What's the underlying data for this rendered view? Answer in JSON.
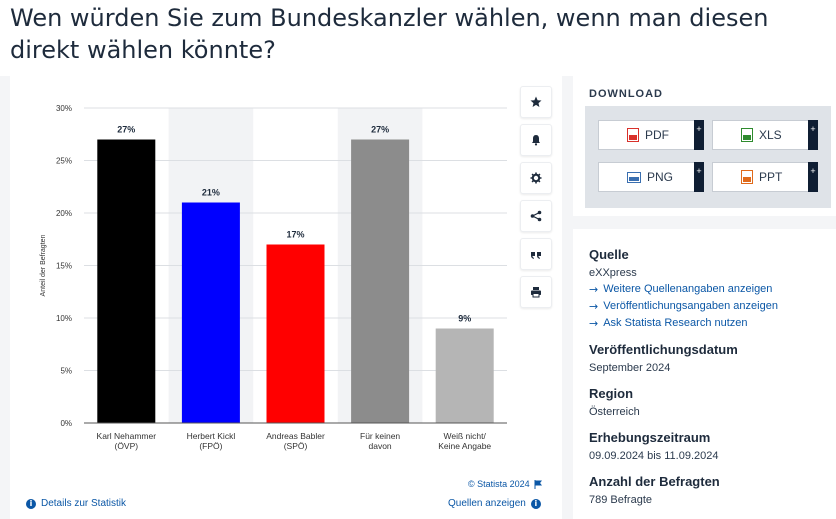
{
  "page": {
    "title": "Wen würden Sie zum Bundeskanzler wählen, wenn man diesen direkt wählen könnte?"
  },
  "chart_data": {
    "type": "bar",
    "categories": [
      [
        "Karl Nehammer",
        "(ÖVP)"
      ],
      [
        "Herbert Kickl",
        "(FPÖ)"
      ],
      [
        "Andreas Babler",
        "(SPÖ)"
      ],
      [
        "Für keinen",
        "davon"
      ],
      [
        "Weiß nicht/",
        "Keine Angabe"
      ]
    ],
    "values": [
      27,
      21,
      17,
      27,
      9
    ],
    "value_labels": [
      "27%",
      "21%",
      "17%",
      "27%",
      "9%"
    ],
    "colors": [
      "#000000",
      "#0000ff",
      "#ff0000",
      "#8c8c8c",
      "#b5b5b5"
    ],
    "ylabel": "Anteil der Befragten",
    "ylim": [
      0,
      30
    ],
    "yticks": [
      0,
      5,
      10,
      15,
      20,
      25,
      30
    ],
    "ytick_labels": [
      "0%",
      "5%",
      "10%",
      "15%",
      "20%",
      "25%",
      "30%"
    ],
    "grid": true,
    "highlight_columns": [
      1,
      3
    ]
  },
  "chart_footer": {
    "copyright": "© Statista 2024",
    "details_label": "Details zur Statistik",
    "sources_label": "Quellen anzeigen"
  },
  "tools": [
    "star-icon",
    "bell-icon",
    "gear-icon",
    "share-icon",
    "quote-icon",
    "print-icon"
  ],
  "download": {
    "title": "DOWNLOAD",
    "buttons": [
      {
        "label": "PDF",
        "icon": "pdf-file-icon",
        "color": "#d9312b"
      },
      {
        "label": "XLS",
        "icon": "xls-file-icon",
        "color": "#2e8b2e"
      },
      {
        "label": "PNG",
        "icon": "png-file-icon",
        "color": "#3a6fb0"
      },
      {
        "label": "PPT",
        "icon": "ppt-file-icon",
        "color": "#e06a1b"
      }
    ],
    "plus": "+"
  },
  "info": {
    "source_heading": "Quelle",
    "source_value": "eXXpress",
    "links": [
      "Weitere Quellenangaben anzeigen",
      "Veröffentlichungsangaben anzeigen",
      "Ask Statista Research nutzen"
    ],
    "pubdate_heading": "Veröffentlichungsdatum",
    "pubdate_value": "September 2024",
    "region_heading": "Region",
    "region_value": "Österreich",
    "period_heading": "Erhebungszeitraum",
    "period_value": "09.09.2024 bis 11.09.2024",
    "respondents_heading": "Anzahl der Befragten",
    "respondents_value": "789 Befragte"
  }
}
